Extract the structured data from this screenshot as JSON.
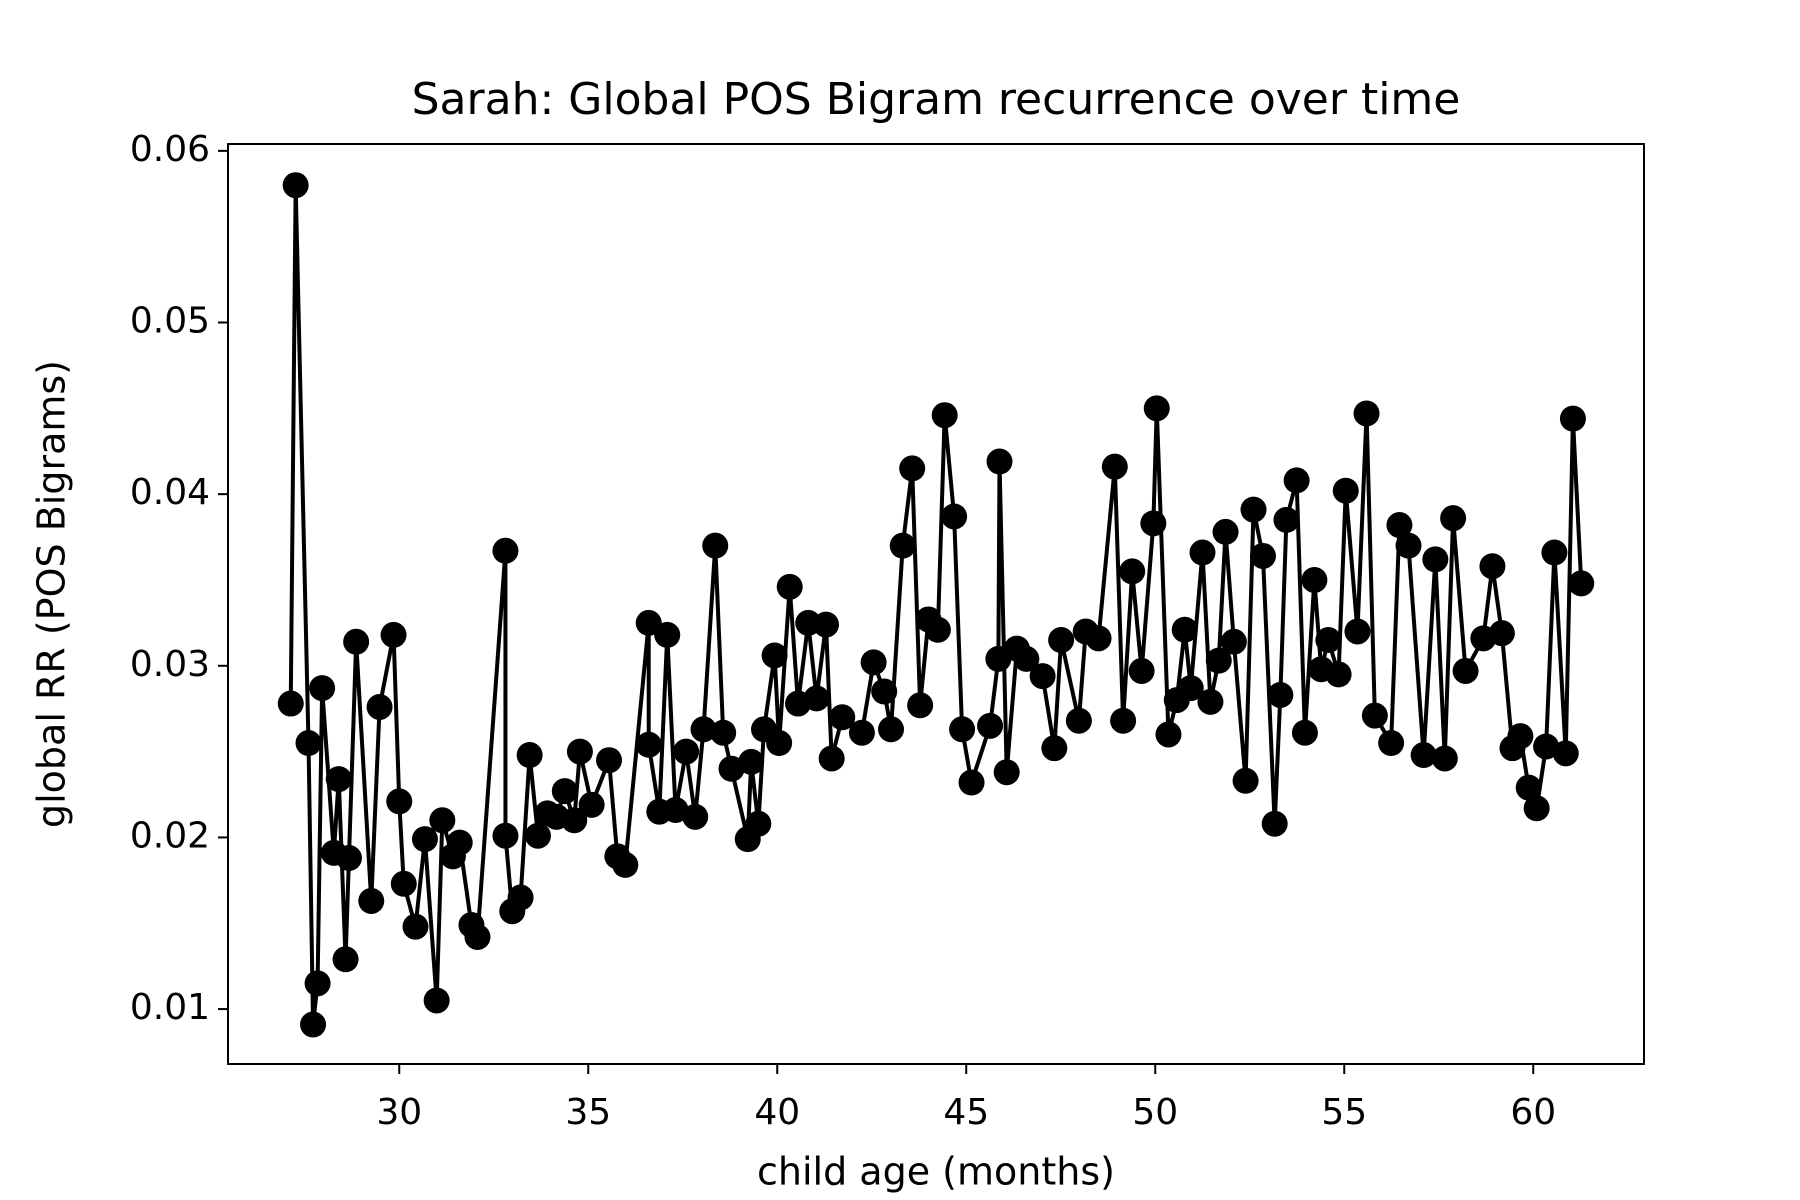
{
  "chart_data": {
    "type": "line",
    "title": "Sarah: Global POS Bigram recurrence over time",
    "x_label": "child age (months)",
    "y_label": "global RR (POS Bigrams)",
    "color": "#000000",
    "x": [
      27.13,
      27.26,
      27.6,
      27.72,
      27.84,
      27.96,
      28.27,
      28.4,
      28.58,
      28.67,
      28.86,
      29.26,
      29.48,
      29.85,
      30.0,
      30.12,
      30.43,
      30.68,
      30.99,
      31.14,
      31.42,
      31.6,
      31.91,
      32.07,
      32.81,
      32.81,
      32.99,
      33.21,
      33.45,
      33.67,
      33.92,
      34.16,
      34.38,
      34.63,
      34.78,
      35.09,
      35.55,
      35.77,
      35.98,
      36.6,
      36.6,
      36.88,
      37.09,
      37.31,
      37.59,
      37.83,
      38.05,
      38.36,
      38.57,
      38.79,
      39.22,
      39.31,
      39.5,
      39.65,
      39.93,
      40.05,
      40.33,
      40.55,
      40.82,
      41.04,
      41.29,
      41.44,
      41.72,
      42.24,
      42.55,
      42.83,
      43.01,
      43.32,
      43.57,
      43.78,
      44.0,
      44.25,
      44.43,
      44.68,
      44.89,
      45.14,
      45.63,
      45.85,
      45.88,
      46.07,
      46.34,
      46.59,
      47.02,
      47.33,
      47.51,
      47.98,
      48.16,
      48.5,
      48.93,
      49.15,
      49.39,
      49.64,
      49.95,
      50.04,
      50.35,
      50.57,
      50.78,
      50.94,
      51.25,
      51.46,
      51.68,
      51.86,
      52.08,
      52.39,
      52.6,
      52.85,
      53.16,
      53.31,
      53.47,
      53.74,
      53.96,
      54.21,
      54.39,
      54.58,
      54.85,
      55.04,
      55.35,
      55.59,
      55.81,
      56.24,
      56.46,
      56.7,
      57.1,
      57.41,
      57.66,
      57.88,
      58.21,
      58.68,
      58.92,
      59.17,
      59.45,
      59.66,
      59.88,
      60.09,
      60.34,
      60.56,
      60.86,
      61.05,
      61.27
    ],
    "values": [
      0.0278,
      0.058,
      0.0255,
      0.0091,
      0.0115,
      0.0287,
      0.0191,
      0.0234,
      0.0129,
      0.0188,
      0.0314,
      0.0163,
      0.0276,
      0.0318,
      0.0221,
      0.0173,
      0.0148,
      0.0199,
      0.0105,
      0.021,
      0.0189,
      0.0197,
      0.0149,
      0.0142,
      0.0367,
      0.0201,
      0.0157,
      0.0165,
      0.0248,
      0.0201,
      0.0214,
      0.0212,
      0.0227,
      0.021,
      0.025,
      0.0219,
      0.0245,
      0.0189,
      0.0184,
      0.0325,
      0.0254,
      0.0215,
      0.0318,
      0.0216,
      0.025,
      0.0212,
      0.0263,
      0.037,
      0.0261,
      0.024,
      0.0199,
      0.0244,
      0.0208,
      0.0263,
      0.0306,
      0.0255,
      0.0346,
      0.0278,
      0.0325,
      0.0281,
      0.0324,
      0.0246,
      0.027,
      0.0261,
      0.0302,
      0.0285,
      0.0263,
      0.037,
      0.0415,
      0.0277,
      0.0327,
      0.0321,
      0.0446,
      0.0387,
      0.0263,
      0.0232,
      0.0265,
      0.0304,
      0.0419,
      0.0238,
      0.031,
      0.0304,
      0.0294,
      0.0252,
      0.0315,
      0.0268,
      0.032,
      0.0316,
      0.0416,
      0.0268,
      0.0355,
      0.0297,
      0.0383,
      0.045,
      0.026,
      0.028,
      0.0321,
      0.0287,
      0.0366,
      0.0279,
      0.0303,
      0.0378,
      0.0314,
      0.0233,
      0.0391,
      0.0364,
      0.0208,
      0.0283,
      0.0385,
      0.0408,
      0.0261,
      0.035,
      0.0298,
      0.0315,
      0.0295,
      0.0402,
      0.032,
      0.0447,
      0.0271,
      0.0255,
      0.0382,
      0.037,
      0.0248,
      0.0362,
      0.0246,
      0.0386,
      0.0297,
      0.0316,
      0.0358,
      0.0319,
      0.0252,
      0.0259,
      0.0229,
      0.0217,
      0.0253,
      0.0366,
      0.0249,
      0.0444,
      0.0348
    ],
    "xlim": [
      25.47,
      62.93
    ],
    "ylim": [
      0.0068,
      0.0604
    ],
    "xticks": [
      30,
      35,
      40,
      45,
      50,
      55,
      60
    ],
    "yticks": [
      0.01,
      0.02,
      0.03,
      0.04,
      0.05,
      0.06
    ],
    "grid": false
  }
}
